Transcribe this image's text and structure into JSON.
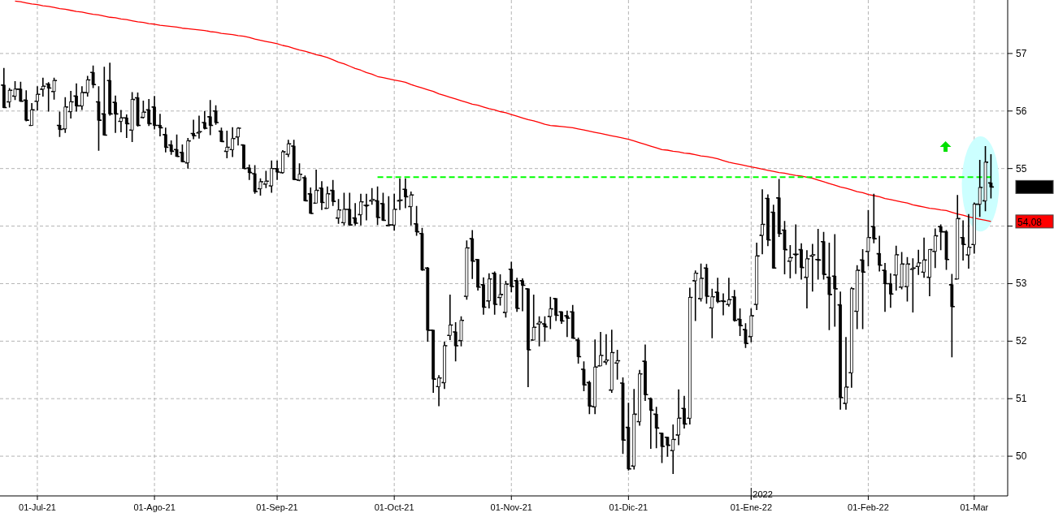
{
  "chart_data": {
    "type": "candlestick",
    "categories": [
      null,
      null,
      null,
      null,
      null,
      null,
      "01-Jul-21",
      null,
      null,
      null,
      null,
      null,
      null,
      null,
      null,
      null,
      null,
      null,
      null,
      null,
      null,
      null,
      null,
      null,
      null,
      null,
      null,
      "01-Ago-21",
      null,
      null,
      null,
      null,
      null,
      null,
      null,
      null,
      null,
      null,
      null,
      null,
      null,
      null,
      null,
      null,
      null,
      null,
      null,
      null,
      null,
      "01-Sep-21",
      null,
      null,
      null,
      null,
      null,
      null,
      null,
      null,
      null,
      null,
      null,
      null,
      null,
      null,
      null,
      null,
      null,
      null,
      null,
      null,
      "01-Oct-21",
      null,
      null,
      null,
      null,
      null,
      null,
      null,
      null,
      null,
      null,
      null,
      null,
      null,
      null,
      null,
      null,
      null,
      null,
      null,
      null,
      "01-Nov-21",
      null,
      null,
      null,
      null,
      null,
      null,
      null,
      null,
      null,
      null,
      null,
      null,
      null,
      null,
      null,
      null,
      null,
      null,
      null,
      null,
      "01-Dic-21",
      null,
      null,
      null,
      null,
      null,
      null,
      null,
      null,
      null,
      null,
      null,
      null,
      null,
      null,
      null,
      null,
      null,
      null,
      null,
      null,
      null,
      "01-Ene-22",
      null,
      null,
      null,
      null,
      null,
      null,
      null,
      null,
      null,
      null,
      null,
      null,
      null,
      null,
      null,
      null,
      null,
      null,
      null,
      null,
      "01-Feb-22",
      null,
      null,
      null,
      null,
      null,
      null,
      null,
      null,
      null,
      null,
      null,
      null,
      null,
      null,
      null,
      null,
      null,
      null,
      "01-Mar",
      null,
      null,
      null
    ],
    "ohlc": [
      [
        56.45,
        56.75,
        56.05,
        56.06
      ],
      [
        56.16,
        56.4,
        56.06,
        56.36
      ],
      [
        56.26,
        56.52,
        56.19,
        56.38
      ],
      [
        56.38,
        56.51,
        56.16,
        56.17
      ],
      [
        56.19,
        56.36,
        55.82,
        55.84
      ],
      [
        55.75,
        56.14,
        55.75,
        56.02
      ],
      [
        56.17,
        56.43,
        56.01,
        56.29
      ],
      [
        56.38,
        56.58,
        56.25,
        56.43
      ],
      [
        56.47,
        56.5,
        55.99,
        56.4
      ],
      [
        56.34,
        56.58,
        56.2,
        56.53
      ],
      [
        55.75,
        55.99,
        55.55,
        55.68
      ],
      [
        55.69,
        56.24,
        55.62,
        56.07
      ],
      [
        55.99,
        56.35,
        55.87,
        56.16
      ],
      [
        56.26,
        56.48,
        55.99,
        56.09
      ],
      [
        56.09,
        56.43,
        56.02,
        56.32
      ],
      [
        56.32,
        56.61,
        56.25,
        56.54
      ],
      [
        56.67,
        56.79,
        56.4,
        56.46
      ],
      [
        56.16,
        56.43,
        55.31,
        55.84
      ],
      [
        55.95,
        56.77,
        55.58,
        55.58
      ],
      [
        56.53,
        56.84,
        55.92,
        55.95
      ],
      [
        56.15,
        56.27,
        55.62,
        55.95
      ],
      [
        55.82,
        56.02,
        55.63,
        55.88
      ],
      [
        55.88,
        55.94,
        55.53,
        55.78
      ],
      [
        55.67,
        56.33,
        55.46,
        56.2
      ],
      [
        56.23,
        56.32,
        55.73,
        55.75
      ],
      [
        55.89,
        56.18,
        55.87,
        55.98
      ],
      [
        56.02,
        56.21,
        55.74,
        55.78
      ],
      [
        56.07,
        56.26,
        55.68,
        55.75
      ],
      [
        55.75,
        55.95,
        55.56,
        55.71
      ],
      [
        55.59,
        55.71,
        55.28,
        55.37
      ],
      [
        55.41,
        55.49,
        55.24,
        55.3
      ],
      [
        55.33,
        55.59,
        55.21,
        55.21
      ],
      [
        55.28,
        55.42,
        55.11,
        55.12
      ],
      [
        55.1,
        55.53,
        55.0,
        55.48
      ],
      [
        55.61,
        55.85,
        55.51,
        55.57
      ],
      [
        55.62,
        55.92,
        55.52,
        55.64
      ],
      [
        55.8,
        56.0,
        55.68,
        55.7
      ],
      [
        55.9,
        56.19,
        55.58,
        55.75
      ],
      [
        56.0,
        56.1,
        55.76,
        55.8
      ],
      [
        55.65,
        55.71,
        55.46,
        55.47
      ],
      [
        55.3,
        55.66,
        55.18,
        55.37
      ],
      [
        55.33,
        55.72,
        55.2,
        55.52
      ],
      [
        55.55,
        55.72,
        55.4,
        55.7
      ],
      [
        55.41,
        55.41,
        55.0,
        55.0
      ],
      [
        55.01,
        55.07,
        54.8,
        54.93
      ],
      [
        54.91,
        55.06,
        54.56,
        54.6
      ],
      [
        54.65,
        54.83,
        54.53,
        54.77
      ],
      [
        54.73,
        54.96,
        54.66,
        54.78
      ],
      [
        54.7,
        55.14,
        54.58,
        55.0
      ],
      [
        55.0,
        55.14,
        54.8,
        54.94
      ],
      [
        54.93,
        55.32,
        54.91,
        55.29
      ],
      [
        55.25,
        55.5,
        55.2,
        55.43
      ],
      [
        55.39,
        55.5,
        54.8,
        54.81
      ],
      [
        54.8,
        55.09,
        54.78,
        54.9
      ],
      [
        54.84,
        54.88,
        54.43,
        54.44
      ],
      [
        54.56,
        54.67,
        54.22,
        54.22
      ],
      [
        54.4,
        54.98,
        54.4,
        54.62
      ],
      [
        54.66,
        54.78,
        54.28,
        54.41
      ],
      [
        54.31,
        54.69,
        54.3,
        54.56
      ],
      [
        54.62,
        54.8,
        54.35,
        54.43
      ],
      [
        54.14,
        54.47,
        54.04,
        54.28
      ],
      [
        54.06,
        54.58,
        54.01,
        54.29
      ],
      [
        54.29,
        54.58,
        54.01,
        54.02
      ],
      [
        54.14,
        54.4,
        54.01,
        54.05
      ],
      [
        54.2,
        54.56,
        54.01,
        54.42
      ],
      [
        54.36,
        54.56,
        54.1,
        54.36
      ],
      [
        54.44,
        54.66,
        54.37,
        54.46
      ],
      [
        54.44,
        54.69,
        54.02,
        54.15
      ],
      [
        54.39,
        54.58,
        54.09,
        54.1
      ],
      [
        54.01,
        54.52,
        54.0,
        54.02
      ],
      [
        54.02,
        54.56,
        53.92,
        54.29
      ],
      [
        54.44,
        54.83,
        54.28,
        54.45
      ],
      [
        54.64,
        54.83,
        54.31,
        54.51
      ],
      [
        54.34,
        54.6,
        54.01,
        54.54
      ],
      [
        54.04,
        54.35,
        53.83,
        53.9
      ],
      [
        53.87,
        53.97,
        53.22,
        53.24
      ],
      [
        53.27,
        53.29,
        51.99,
        52.19
      ],
      [
        52.19,
        52.19,
        51.1,
        51.34
      ],
      [
        51.21,
        51.41,
        50.87,
        51.36
      ],
      [
        51.28,
        51.99,
        51.17,
        51.92
      ],
      [
        52.1,
        52.81,
        52.02,
        52.28
      ],
      [
        52.16,
        52.33,
        51.65,
        51.92
      ],
      [
        52.01,
        52.43,
        51.91,
        52.36
      ],
      [
        52.78,
        53.75,
        52.72,
        53.62
      ],
      [
        53.78,
        53.93,
        53.08,
        53.39
      ],
      [
        53.42,
        53.42,
        52.88,
        52.94
      ],
      [
        52.98,
        53.11,
        52.46,
        52.59
      ],
      [
        52.7,
        53.18,
        52.57,
        53.08
      ],
      [
        53.18,
        53.21,
        52.46,
        52.64
      ],
      [
        52.76,
        53.16,
        52.62,
        52.81
      ],
      [
        52.5,
        53.05,
        52.41,
        52.99
      ],
      [
        53.25,
        53.38,
        52.85,
        52.95
      ],
      [
        53.05,
        53.1,
        52.51,
        52.57
      ],
      [
        53.05,
        53.09,
        52.52,
        52.97
      ],
      [
        52.91,
        52.91,
        51.2,
        51.85
      ],
      [
        52.02,
        52.81,
        52.02,
        52.24
      ],
      [
        52.3,
        52.43,
        51.91,
        52.33
      ],
      [
        52.3,
        52.43,
        51.99,
        52.25
      ],
      [
        52.43,
        52.77,
        52.21,
        52.56
      ],
      [
        52.74,
        52.74,
        52.35,
        52.45
      ],
      [
        52.51,
        52.52,
        52.3,
        52.35
      ],
      [
        52.44,
        52.53,
        52.07,
        52.4
      ],
      [
        52.51,
        52.63,
        52.05,
        52.05
      ],
      [
        52.02,
        52.06,
        51.61,
        51.73
      ],
      [
        51.51,
        51.65,
        51.13,
        51.24
      ],
      [
        51.28,
        51.31,
        50.73,
        50.87
      ],
      [
        50.86,
        52.03,
        50.73,
        51.55
      ],
      [
        51.57,
        52.16,
        51.57,
        51.75
      ],
      [
        51.64,
        52.12,
        51.59,
        51.67
      ],
      [
        51.15,
        52.2,
        51.1,
        51.8
      ],
      [
        51.62,
        51.85,
        51.33,
        51.66
      ],
      [
        51.27,
        51.37,
        50.04,
        50.28
      ],
      [
        50.5,
        50.93,
        49.75,
        49.78
      ],
      [
        49.83,
        51.17,
        49.77,
        50.73
      ],
      [
        50.6,
        51.5,
        50.53,
        51.43
      ],
      [
        51.65,
        51.94,
        50.96,
        51.07
      ],
      [
        51.0,
        51.02,
        50.13,
        50.8
      ],
      [
        50.73,
        50.86,
        50.14,
        50.49
      ],
      [
        50.4,
        50.41,
        49.88,
        50.17
      ],
      [
        50.33,
        50.33,
        49.99,
        50.19
      ],
      [
        50.1,
        50.55,
        49.69,
        50.29
      ],
      [
        50.37,
        51.16,
        50.19,
        50.66
      ],
      [
        50.83,
        51.05,
        50.48,
        50.56
      ],
      [
        50.66,
        52.93,
        50.55,
        52.76
      ],
      [
        53.05,
        53.23,
        52.35,
        53.18
      ],
      [
        52.74,
        53.35,
        52.69,
        53.09
      ],
      [
        53.27,
        53.34,
        52.65,
        52.78
      ],
      [
        52.58,
        52.91,
        52.05,
        52.77
      ],
      [
        52.85,
        53.1,
        52.66,
        52.69
      ],
      [
        52.7,
        52.83,
        52.45,
        52.69
      ],
      [
        52.64,
        53.1,
        52.6,
        52.72
      ],
      [
        52.77,
        52.89,
        52.34,
        52.36
      ],
      [
        52.38,
        52.57,
        52.09,
        52.27
      ],
      [
        52.2,
        52.31,
        51.88,
        51.96
      ],
      [
        52.08,
        52.57,
        51.98,
        52.44
      ],
      [
        52.64,
        53.71,
        52.54,
        53.48
      ],
      [
        53.84,
        54.64,
        53.51,
        54.03
      ],
      [
        54.48,
        54.55,
        53.65,
        53.76
      ],
      [
        54.24,
        54.37,
        53.26,
        53.27
      ],
      [
        54.49,
        54.82,
        53.81,
        53.87
      ],
      [
        53.93,
        54.09,
        53.16,
        53.59
      ],
      [
        53.39,
        53.67,
        53.09,
        53.45
      ],
      [
        53.51,
        54.03,
        53.17,
        53.51
      ],
      [
        53.59,
        53.7,
        53.07,
        53.28
      ],
      [
        53.11,
        53.58,
        52.57,
        53.43
      ],
      [
        53.48,
        53.69,
        52.86,
        53.5
      ],
      [
        53.42,
        53.95,
        53.07,
        53.41
      ],
      [
        53.73,
        53.9,
        53.07,
        53.16
      ],
      [
        53.11,
        53.71,
        52.19,
        52.81
      ],
      [
        53.13,
        53.86,
        52.25,
        52.91
      ],
      [
        52.63,
        52.86,
        50.81,
        51.02
      ],
      [
        50.92,
        52.07,
        50.81,
        51.2
      ],
      [
        51.45,
        52.94,
        51.19,
        52.91
      ],
      [
        52.52,
        53.32,
        52.21,
        53.23
      ],
      [
        53.41,
        53.6,
        52.21,
        53.2
      ],
      [
        53.56,
        54.28,
        53.3,
        53.8
      ],
      [
        53.99,
        54.56,
        53.7,
        53.78
      ],
      [
        53.52,
        53.83,
        53.21,
        53.32
      ],
      [
        53.23,
        53.36,
        52.51,
        53.0
      ],
      [
        53.0,
        53.18,
        52.58,
        52.82
      ],
      [
        53.15,
        53.66,
        52.88,
        53.5
      ],
      [
        52.94,
        53.55,
        52.9,
        53.34
      ],
      [
        52.95,
        53.46,
        52.69,
        53.34
      ],
      [
        53.25,
        53.44,
        52.5,
        53.27
      ],
      [
        53.3,
        53.59,
        53.15,
        53.36
      ],
      [
        53.2,
        53.8,
        53.1,
        53.41
      ],
      [
        53.11,
        53.59,
        52.78,
        53.59
      ],
      [
        53.56,
        53.96,
        53.27,
        53.83
      ],
      [
        53.99,
        54.03,
        53.58,
        53.9
      ],
      [
        53.9,
        53.93,
        53.24,
        53.42
      ],
      [
        52.98,
        53.17,
        51.72,
        52.6
      ],
      [
        53.08,
        54.54,
        53.08,
        54.13
      ],
      [
        53.8,
        54.1,
        53.4,
        53.68
      ],
      [
        53.5,
        54.21,
        53.26,
        53.63
      ],
      [
        53.68,
        54.41,
        53.52,
        54.38
      ],
      [
        54.38,
        55.15,
        54.16,
        54.67
      ],
      [
        54.44,
        55.39,
        54.26,
        55.11
      ],
      [
        54.75,
        55.25,
        54.48,
        54.68
      ]
    ],
    "series": [
      {
        "type": "line",
        "color": "#ff0000",
        "values": [
          null,
          null,
          57.91,
          57.9,
          57.88,
          57.86,
          57.85,
          57.83,
          57.82,
          57.8,
          57.78,
          57.77,
          57.75,
          57.73,
          57.72,
          57.7,
          57.68,
          57.67,
          57.65,
          57.63,
          57.62,
          57.6,
          57.59,
          57.57,
          57.55,
          57.54,
          57.52,
          57.51,
          57.49,
          57.48,
          57.47,
          57.46,
          57.44,
          57.43,
          57.42,
          57.41,
          57.4,
          57.38,
          57.37,
          57.35,
          57.34,
          57.33,
          57.31,
          57.3,
          57.28,
          57.25,
          57.23,
          57.21,
          57.19,
          57.17,
          57.14,
          57.12,
          57.09,
          57.06,
          57.04,
          57.01,
          56.98,
          56.96,
          56.93,
          56.89,
          56.85,
          56.82,
          56.78,
          56.74,
          56.71,
          56.67,
          56.64,
          56.6,
          56.58,
          56.56,
          56.54,
          56.52,
          56.5,
          56.46,
          56.43,
          56.4,
          56.37,
          56.34,
          56.3,
          56.27,
          56.24,
          56.21,
          56.18,
          56.15,
          56.12,
          56.1,
          56.07,
          56.04,
          56.02,
          55.99,
          55.97,
          55.94,
          55.91,
          55.88,
          55.85,
          55.83,
          55.8,
          55.77,
          55.75,
          55.74,
          55.73,
          55.72,
          55.71,
          55.69,
          55.67,
          55.65,
          55.63,
          55.61,
          55.59,
          55.57,
          55.55,
          55.53,
          55.51,
          55.48,
          55.45,
          55.42,
          55.39,
          55.36,
          55.33,
          55.32,
          55.3,
          55.29,
          55.27,
          55.26,
          55.24,
          55.22,
          55.21,
          55.19,
          55.17,
          55.14,
          55.11,
          55.09,
          55.07,
          55.05,
          55.03,
          55.01,
          54.99,
          54.97,
          54.95,
          54.93,
          54.92,
          54.9,
          54.88,
          54.87,
          54.85,
          54.83,
          54.8,
          54.77,
          54.74,
          54.71,
          54.68,
          54.66,
          54.63,
          54.6,
          54.58,
          54.55,
          54.53,
          54.51,
          54.48,
          54.46,
          54.44,
          54.42,
          54.4,
          54.37,
          54.35,
          54.33,
          54.31,
          54.3,
          54.28,
          54.27,
          54.24,
          54.21,
          54.19,
          54.16,
          54.14,
          54.12,
          54.1,
          54.08
        ]
      },
      {
        "type": "line",
        "color": "#00ff00",
        "line_style": "dashed",
        "values": [
          null,
          null,
          null,
          null,
          null,
          null,
          null,
          null,
          null,
          null,
          null,
          null,
          null,
          null,
          null,
          null,
          null,
          null,
          null,
          null,
          null,
          null,
          null,
          null,
          null,
          null,
          null,
          null,
          null,
          null,
          null,
          null,
          null,
          null,
          null,
          null,
          null,
          null,
          null,
          null,
          null,
          null,
          null,
          null,
          null,
          null,
          null,
          null,
          null,
          null,
          null,
          null,
          null,
          null,
          null,
          null,
          null,
          null,
          null,
          null,
          null,
          null,
          null,
          null,
          null,
          null,
          null,
          54.85,
          54.85,
          54.85,
          54.85,
          54.85,
          54.85,
          54.85,
          54.85,
          54.85,
          54.85,
          54.85,
          54.85,
          54.85,
          54.85,
          54.85,
          54.85,
          54.85,
          54.85,
          54.85,
          54.85,
          54.85,
          54.85,
          54.85,
          54.85,
          54.85,
          54.85,
          54.85,
          54.85,
          54.85,
          54.85,
          54.85,
          54.85,
          54.85,
          54.85,
          54.85,
          54.85,
          54.85,
          54.85,
          54.85,
          54.85,
          54.85,
          54.85,
          54.85,
          54.85,
          54.85,
          54.85,
          54.85,
          54.85,
          54.85,
          54.85,
          54.85,
          54.85,
          54.85,
          54.85,
          54.85,
          54.85,
          54.85,
          54.85,
          54.85,
          54.85,
          54.85,
          54.85,
          54.85,
          54.85,
          54.85,
          54.85,
          54.85,
          54.85,
          54.85,
          54.85,
          54.85,
          54.85,
          54.85,
          54.85,
          54.85,
          54.85,
          54.85,
          54.85,
          54.85,
          54.85,
          54.85,
          54.85,
          54.85,
          54.85,
          54.85,
          54.85,
          54.85,
          54.85,
          54.85,
          54.85,
          54.85,
          54.85,
          54.85,
          54.85,
          54.85,
          54.85,
          54.85,
          54.85,
          54.85,
          54.85,
          54.85,
          54.85,
          54.85,
          54.85,
          54.85,
          54.85,
          54.85,
          54.85,
          54.85,
          54.85,
          54.85
        ]
      }
    ],
    "ylim": [
      49.31,
      57.93
    ],
    "yticks": [
      50,
      51,
      52,
      53,
      {
        "value": 54,
        "label": null
      },
      55,
      56,
      57
    ],
    "grid": true,
    "annotations": [
      "2022",
      "54,08"
    ]
  }
}
